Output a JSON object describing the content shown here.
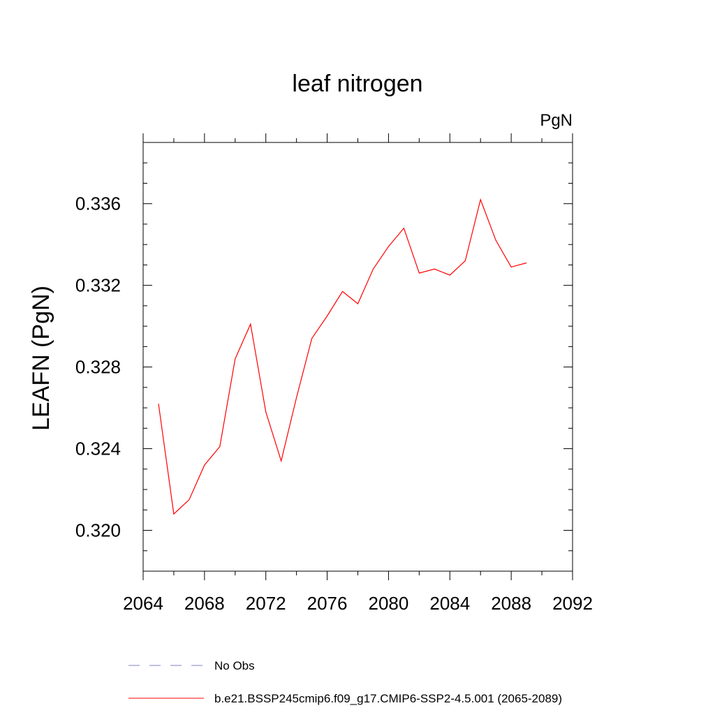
{
  "chart_data": {
    "type": "line",
    "title": "leaf nitrogen",
    "units_label": "PgN",
    "xlabel": "",
    "ylabel": "LEAFN  (PgN)",
    "xlim": [
      2064,
      2092
    ],
    "ylim": [
      0.318,
      0.339
    ],
    "x_ticks": [
      2064,
      2068,
      2072,
      2076,
      2080,
      2084,
      2088,
      2092
    ],
    "x_tick_labels": [
      "2064",
      "2068",
      "2072",
      "2076",
      "2080",
      "2084",
      "2088",
      "2092"
    ],
    "x_minor_step": 2,
    "y_ticks": [
      0.32,
      0.324,
      0.328,
      0.332,
      0.336
    ],
    "y_tick_labels": [
      "0.320",
      "0.324",
      "0.328",
      "0.332",
      "0.336"
    ],
    "y_minor_step": 0.001,
    "grid": false,
    "legend_position": "bottom",
    "series": [
      {
        "name": "b.e21.BSSP245cmip6.f09_g17.CMIP6-SSP2-4.5.001 (2065-2089)",
        "color": "#ff0000",
        "dash": "solid",
        "x": [
          2065,
          2066,
          2067,
          2068,
          2069,
          2070,
          2071,
          2072,
          2073,
          2074,
          2075,
          2076,
          2077,
          2078,
          2079,
          2080,
          2081,
          2082,
          2083,
          2084,
          2085,
          2086,
          2087,
          2088,
          2089
        ],
        "y": [
          0.3262,
          0.3208,
          0.3215,
          0.3232,
          0.3241,
          0.3284,
          0.3301,
          0.3258,
          0.3234,
          0.3265,
          0.3294,
          0.3305,
          0.3317,
          0.3311,
          0.3328,
          0.3339,
          0.3348,
          0.3326,
          0.3328,
          0.3325,
          0.3332,
          0.3362,
          0.3342,
          0.3329,
          0.3331
        ]
      }
    ],
    "legend": [
      {
        "label": "No Obs",
        "color": "#8080c0",
        "dash": "dashed"
      },
      {
        "label": "b.e21.BSSP245cmip6.f09_g17.CMIP6-SSP2-4.5.001 (2065-2089)",
        "color": "#ff0000",
        "dash": "solid"
      }
    ]
  }
}
